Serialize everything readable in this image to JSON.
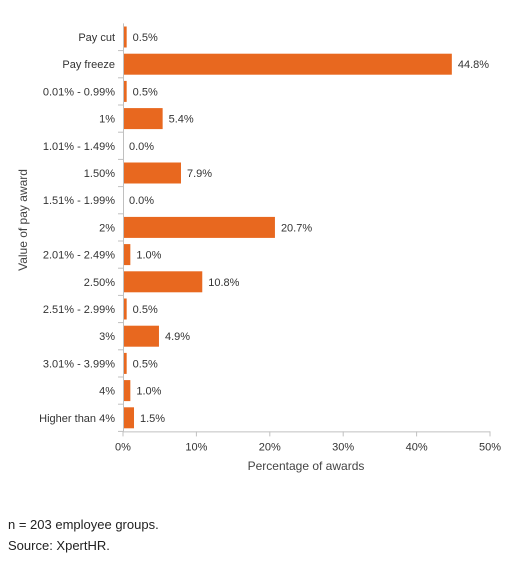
{
  "chart_data": {
    "type": "bar",
    "orientation": "horizontal",
    "categories": [
      "Pay cut",
      "Pay freeze",
      "0.01% - 0.99%",
      "1%",
      "1.01% - 1.49%",
      "1.50%",
      "1.51% - 1.99%",
      "2%",
      "2.01% - 2.49%",
      "2.50%",
      "2.51% - 2.99%",
      "3%",
      "3.01% - 3.99%",
      "4%",
      "Higher than 4%"
    ],
    "values": [
      0.5,
      44.8,
      0.5,
      5.4,
      0.0,
      7.9,
      0.0,
      20.7,
      1.0,
      10.8,
      0.5,
      4.9,
      0.5,
      1.0,
      1.5
    ],
    "value_labels": [
      "0.5%",
      "44.8%",
      "0.5%",
      "5.4%",
      "0.0%",
      "7.9%",
      "0.0%",
      "20.7%",
      "1.0%",
      "10.8%",
      "0.5%",
      "4.9%",
      "0.5%",
      "1.0%",
      "1.5%"
    ],
    "xlabel": "Percentage of awards",
    "ylabel": "Value of pay award",
    "xlim": [
      0,
      50
    ],
    "xticks": [
      0,
      10,
      20,
      30,
      40,
      50
    ],
    "xtick_labels": [
      "0%",
      "10%",
      "20%",
      "30%",
      "40%",
      "50%"
    ],
    "bar_color": "#e8681f",
    "grid": false,
    "legend": "none"
  },
  "notes": {
    "n": "n = 203 employee groups.",
    "source": "Source: XpertHR."
  }
}
